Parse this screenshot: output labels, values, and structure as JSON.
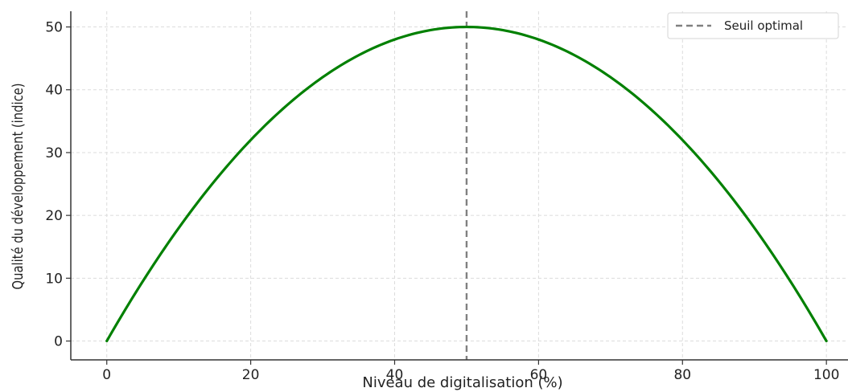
{
  "chart_data": {
    "type": "line",
    "title": "",
    "xlabel": "Niveau de digitalisation (%)",
    "ylabel": "Qualité du développement (indice)",
    "xlim": [
      -5,
      103
    ],
    "ylim": [
      -3,
      52.5
    ],
    "xticks": [
      0,
      20,
      40,
      60,
      80,
      100
    ],
    "yticks": [
      0,
      10,
      20,
      30,
      40,
      50
    ],
    "grid": true,
    "legend_position": "top-right",
    "series": [
      {
        "name": "",
        "color": "#008000",
        "style": "solid",
        "formula": "y = -0.02 * (x - 50)^2 + 50",
        "x": [
          0,
          5,
          10,
          15,
          20,
          25,
          30,
          35,
          40,
          45,
          50,
          55,
          60,
          65,
          70,
          75,
          80,
          85,
          90,
          95,
          100
        ],
        "y": [
          0,
          9.5,
          18,
          25.5,
          32,
          37.5,
          42,
          45.5,
          48,
          49.5,
          50,
          49.5,
          48,
          45.5,
          42,
          37.5,
          32,
          25.5,
          18,
          9.5,
          0
        ]
      }
    ],
    "vlines": [
      {
        "name": "Seuil optimal",
        "x": 50,
        "color": "#808080",
        "style": "dashed"
      }
    ]
  }
}
